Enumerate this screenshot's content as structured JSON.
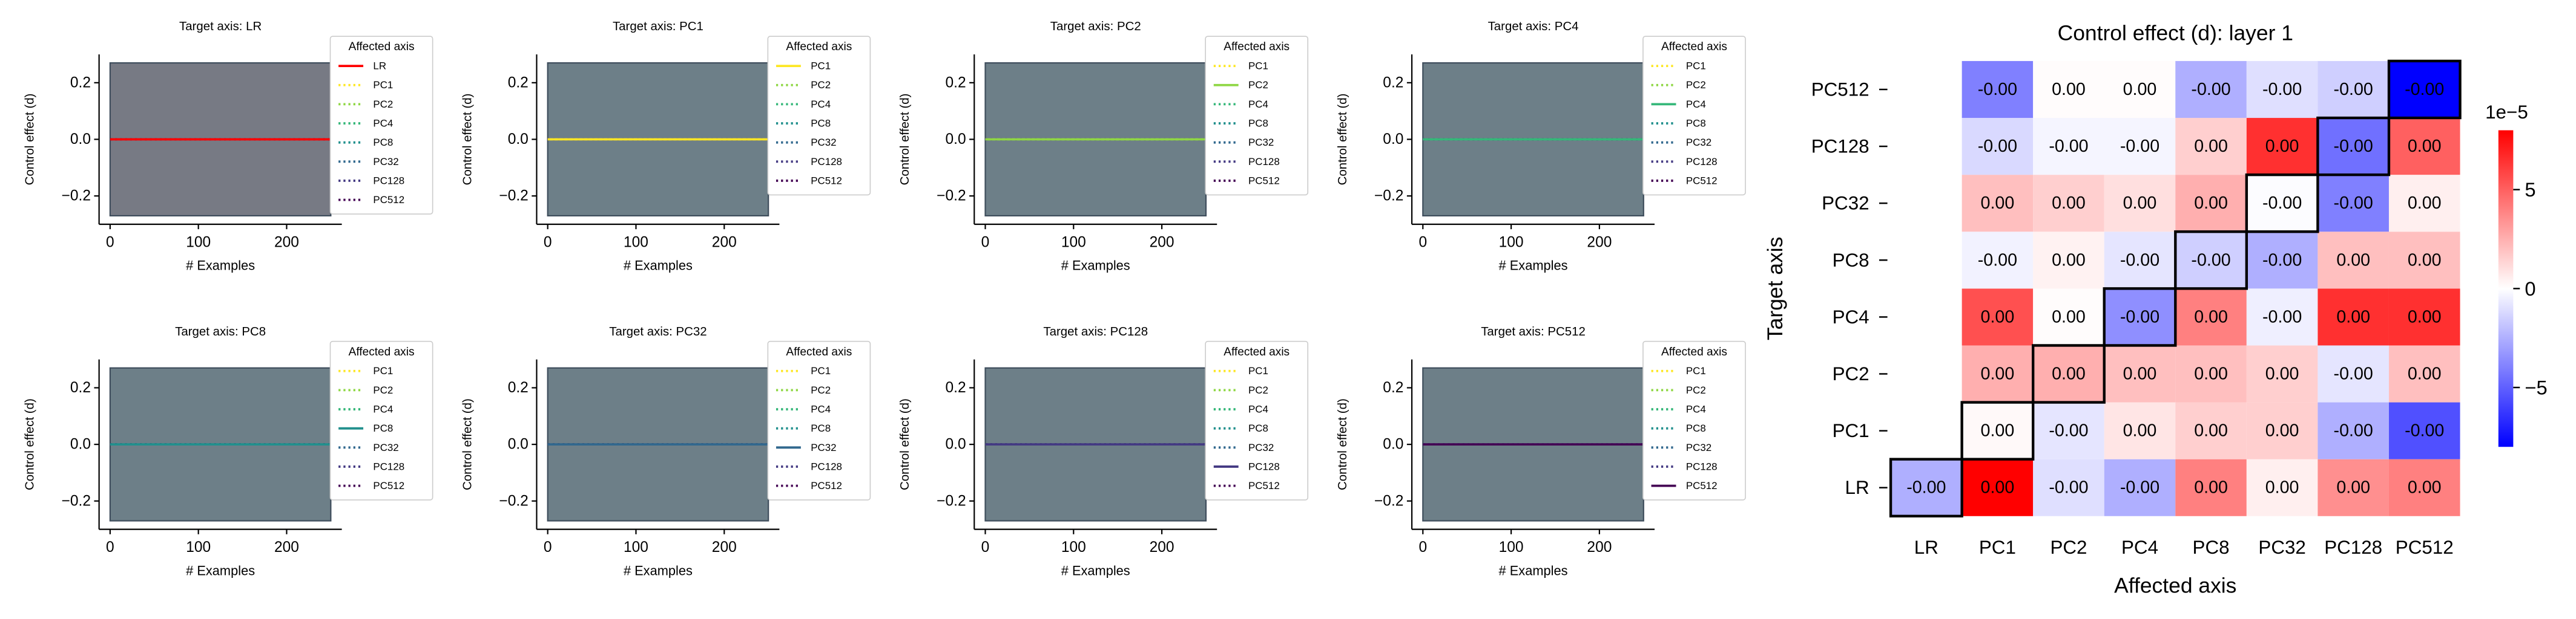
{
  "chart_data": [
    {
      "type": "line",
      "title": "Target axis: LR",
      "xlabel": "# Examples",
      "ylabel": "Control effect (d)",
      "legend_title": "Affected axis",
      "xlim": [
        -12.5,
        262.5
      ],
      "xticks": [
        0,
        100,
        200
      ],
      "ylim": [
        -0.3,
        0.3
      ],
      "yticks": [
        {
          "value": -0.2,
          "label": "−0.2"
        },
        {
          "value": 0,
          "label": "0.0"
        },
        0.2
      ],
      "shade": {
        "x": [
          0,
          250
        ],
        "y": [
          -0.27,
          0.27
        ],
        "color": "#777a84"
      },
      "x": [
        0,
        250
      ],
      "series": [
        {
          "name": "LR",
          "color": "#ff0000",
          "style": "solid",
          "values": [
            0,
            0
          ]
        },
        {
          "name": "PC1",
          "color": "#fde725",
          "style": "dotted",
          "values": [
            0,
            0
          ]
        },
        {
          "name": "PC2",
          "color": "#8fd744",
          "style": "dotted",
          "values": [
            0,
            0
          ]
        },
        {
          "name": "PC4",
          "color": "#35b779",
          "style": "dotted",
          "values": [
            0,
            0
          ]
        },
        {
          "name": "PC8",
          "color": "#21908d",
          "style": "dotted",
          "values": [
            0,
            0
          ]
        },
        {
          "name": "PC32",
          "color": "#31688e",
          "style": "dotted",
          "values": [
            0,
            0
          ]
        },
        {
          "name": "PC128",
          "color": "#443a83",
          "style": "dotted",
          "values": [
            0,
            0
          ]
        },
        {
          "name": "PC512",
          "color": "#440154",
          "style": "dotted",
          "values": [
            0,
            0
          ]
        }
      ]
    },
    {
      "type": "line",
      "title": "Target axis: PC1",
      "xlabel": "# Examples",
      "ylabel": "Control effect (d)",
      "legend_title": "Affected axis",
      "xlim": [
        -12.5,
        262.5
      ],
      "xticks": [
        0,
        100,
        200
      ],
      "ylim": [
        -0.3,
        0.3
      ],
      "yticks": [
        {
          "value": -0.2,
          "label": "−0.2"
        },
        {
          "value": 0,
          "label": "0.0"
        },
        0.2
      ],
      "shade": {
        "x": [
          0,
          250
        ],
        "y": [
          -0.27,
          0.27
        ],
        "color": "#6d7f88"
      },
      "x": [
        0,
        250
      ],
      "series": [
        {
          "name": "PC1",
          "color": "#fde725",
          "style": "solid",
          "values": [
            0,
            0
          ]
        },
        {
          "name": "PC2",
          "color": "#8fd744",
          "style": "dotted",
          "values": [
            0,
            0
          ]
        },
        {
          "name": "PC4",
          "color": "#35b779",
          "style": "dotted",
          "values": [
            0,
            0
          ]
        },
        {
          "name": "PC8",
          "color": "#21908d",
          "style": "dotted",
          "values": [
            0,
            0
          ]
        },
        {
          "name": "PC32",
          "color": "#31688e",
          "style": "dotted",
          "values": [
            0,
            0
          ]
        },
        {
          "name": "PC128",
          "color": "#443a83",
          "style": "dotted",
          "values": [
            0,
            0
          ]
        },
        {
          "name": "PC512",
          "color": "#440154",
          "style": "dotted",
          "values": [
            0,
            0
          ]
        }
      ]
    },
    {
      "type": "line",
      "title": "Target axis: PC2",
      "xlabel": "# Examples",
      "ylabel": "Control effect (d)",
      "legend_title": "Affected axis",
      "xlim": [
        -12.5,
        262.5
      ],
      "xticks": [
        0,
        100,
        200
      ],
      "ylim": [
        -0.3,
        0.3
      ],
      "yticks": [
        {
          "value": -0.2,
          "label": "−0.2"
        },
        {
          "value": 0,
          "label": "0.0"
        },
        0.2
      ],
      "shade": {
        "x": [
          0,
          250
        ],
        "y": [
          -0.27,
          0.27
        ],
        "color": "#6d7f88"
      },
      "x": [
        0,
        250
      ],
      "series": [
        {
          "name": "PC1",
          "color": "#fde725",
          "style": "dotted",
          "values": [
            0,
            0
          ]
        },
        {
          "name": "PC2",
          "color": "#8fd744",
          "style": "solid",
          "values": [
            0,
            0
          ]
        },
        {
          "name": "PC4",
          "color": "#35b779",
          "style": "dotted",
          "values": [
            0,
            0
          ]
        },
        {
          "name": "PC8",
          "color": "#21908d",
          "style": "dotted",
          "values": [
            0,
            0
          ]
        },
        {
          "name": "PC32",
          "color": "#31688e",
          "style": "dotted",
          "values": [
            0,
            0
          ]
        },
        {
          "name": "PC128",
          "color": "#443a83",
          "style": "dotted",
          "values": [
            0,
            0
          ]
        },
        {
          "name": "PC512",
          "color": "#440154",
          "style": "dotted",
          "values": [
            0,
            0
          ]
        }
      ]
    },
    {
      "type": "line",
      "title": "Target axis: PC4",
      "xlabel": "# Examples",
      "ylabel": "Control effect (d)",
      "legend_title": "Affected axis",
      "xlim": [
        -12.5,
        262.5
      ],
      "xticks": [
        0,
        100,
        200
      ],
      "ylim": [
        -0.3,
        0.3
      ],
      "yticks": [
        {
          "value": -0.2,
          "label": "−0.2"
        },
        {
          "value": 0,
          "label": "0.0"
        },
        0.2
      ],
      "shade": {
        "x": [
          0,
          250
        ],
        "y": [
          -0.27,
          0.27
        ],
        "color": "#6d7f88"
      },
      "x": [
        0,
        250
      ],
      "series": [
        {
          "name": "PC1",
          "color": "#fde725",
          "style": "dotted",
          "values": [
            0,
            0
          ]
        },
        {
          "name": "PC2",
          "color": "#8fd744",
          "style": "dotted",
          "values": [
            0,
            0
          ]
        },
        {
          "name": "PC4",
          "color": "#35b779",
          "style": "solid",
          "values": [
            0,
            0
          ]
        },
        {
          "name": "PC8",
          "color": "#21908d",
          "style": "dotted",
          "values": [
            0,
            0
          ]
        },
        {
          "name": "PC32",
          "color": "#31688e",
          "style": "dotted",
          "values": [
            0,
            0
          ]
        },
        {
          "name": "PC128",
          "color": "#443a83",
          "style": "dotted",
          "values": [
            0,
            0
          ]
        },
        {
          "name": "PC512",
          "color": "#440154",
          "style": "dotted",
          "values": [
            0,
            0
          ]
        }
      ]
    },
    {
      "type": "line",
      "title": "Target axis: PC8",
      "xlabel": "# Examples",
      "ylabel": "Control effect (d)",
      "legend_title": "Affected axis",
      "xlim": [
        -12.5,
        262.5
      ],
      "xticks": [
        0,
        100,
        200
      ],
      "ylim": [
        -0.3,
        0.3
      ],
      "yticks": [
        {
          "value": -0.2,
          "label": "−0.2"
        },
        {
          "value": 0,
          "label": "0.0"
        },
        0.2
      ],
      "shade": {
        "x": [
          0,
          250
        ],
        "y": [
          -0.27,
          0.27
        ],
        "color": "#6d7f88"
      },
      "x": [
        0,
        250
      ],
      "series": [
        {
          "name": "PC1",
          "color": "#fde725",
          "style": "dotted",
          "values": [
            0,
            0
          ]
        },
        {
          "name": "PC2",
          "color": "#8fd744",
          "style": "dotted",
          "values": [
            0,
            0
          ]
        },
        {
          "name": "PC4",
          "color": "#35b779",
          "style": "dotted",
          "values": [
            0,
            0
          ]
        },
        {
          "name": "PC8",
          "color": "#21908d",
          "style": "solid",
          "values": [
            0,
            0
          ]
        },
        {
          "name": "PC32",
          "color": "#31688e",
          "style": "dotted",
          "values": [
            0,
            0
          ]
        },
        {
          "name": "PC128",
          "color": "#443a83",
          "style": "dotted",
          "values": [
            0,
            0
          ]
        },
        {
          "name": "PC512",
          "color": "#440154",
          "style": "dotted",
          "values": [
            0,
            0
          ]
        }
      ]
    },
    {
      "type": "line",
      "title": "Target axis: PC32",
      "xlabel": "# Examples",
      "ylabel": "Control effect (d)",
      "legend_title": "Affected axis",
      "xlim": [
        -12.5,
        262.5
      ],
      "xticks": [
        0,
        100,
        200
      ],
      "ylim": [
        -0.3,
        0.3
      ],
      "yticks": [
        {
          "value": -0.2,
          "label": "−0.2"
        },
        {
          "value": 0,
          "label": "0.0"
        },
        0.2
      ],
      "shade": {
        "x": [
          0,
          250
        ],
        "y": [
          -0.27,
          0.27
        ],
        "color": "#6d7f88"
      },
      "x": [
        0,
        250
      ],
      "series": [
        {
          "name": "PC1",
          "color": "#fde725",
          "style": "dotted",
          "values": [
            0,
            0
          ]
        },
        {
          "name": "PC2",
          "color": "#8fd744",
          "style": "dotted",
          "values": [
            0,
            0
          ]
        },
        {
          "name": "PC4",
          "color": "#35b779",
          "style": "dotted",
          "values": [
            0,
            0
          ]
        },
        {
          "name": "PC8",
          "color": "#21908d",
          "style": "dotted",
          "values": [
            0,
            0
          ]
        },
        {
          "name": "PC32",
          "color": "#31688e",
          "style": "solid",
          "values": [
            0,
            0
          ]
        },
        {
          "name": "PC128",
          "color": "#443a83",
          "style": "dotted",
          "values": [
            0,
            0
          ]
        },
        {
          "name": "PC512",
          "color": "#440154",
          "style": "dotted",
          "values": [
            0,
            0
          ]
        }
      ]
    },
    {
      "type": "line",
      "title": "Target axis: PC128",
      "xlabel": "# Examples",
      "ylabel": "Control effect (d)",
      "legend_title": "Affected axis",
      "xlim": [
        -12.5,
        262.5
      ],
      "xticks": [
        0,
        100,
        200
      ],
      "ylim": [
        -0.3,
        0.3
      ],
      "yticks": [
        {
          "value": -0.2,
          "label": "−0.2"
        },
        {
          "value": 0,
          "label": "0.0"
        },
        0.2
      ],
      "shade": {
        "x": [
          0,
          250
        ],
        "y": [
          -0.27,
          0.27
        ],
        "color": "#6d7f88"
      },
      "x": [
        0,
        250
      ],
      "series": [
        {
          "name": "PC1",
          "color": "#fde725",
          "style": "dotted",
          "values": [
            0,
            0
          ]
        },
        {
          "name": "PC2",
          "color": "#8fd744",
          "style": "dotted",
          "values": [
            0,
            0
          ]
        },
        {
          "name": "PC4",
          "color": "#35b779",
          "style": "dotted",
          "values": [
            0,
            0
          ]
        },
        {
          "name": "PC8",
          "color": "#21908d",
          "style": "dotted",
          "values": [
            0,
            0
          ]
        },
        {
          "name": "PC32",
          "color": "#31688e",
          "style": "dotted",
          "values": [
            0,
            0
          ]
        },
        {
          "name": "PC128",
          "color": "#443a83",
          "style": "solid",
          "values": [
            0,
            0
          ]
        },
        {
          "name": "PC512",
          "color": "#440154",
          "style": "dotted",
          "values": [
            0,
            0
          ]
        }
      ]
    },
    {
      "type": "line",
      "title": "Target axis: PC512",
      "xlabel": "# Examples",
      "ylabel": "Control effect (d)",
      "legend_title": "Affected axis",
      "xlim": [
        -12.5,
        262.5
      ],
      "xticks": [
        0,
        100,
        200
      ],
      "ylim": [
        -0.3,
        0.3
      ],
      "yticks": [
        {
          "value": -0.2,
          "label": "−0.2"
        },
        {
          "value": 0,
          "label": "0.0"
        },
        0.2
      ],
      "shade": {
        "x": [
          0,
          250
        ],
        "y": [
          -0.27,
          0.27
        ],
        "color": "#6d7f88"
      },
      "x": [
        0,
        250
      ],
      "series": [
        {
          "name": "PC1",
          "color": "#fde725",
          "style": "dotted",
          "values": [
            0,
            0
          ]
        },
        {
          "name": "PC2",
          "color": "#8fd744",
          "style": "dotted",
          "values": [
            0,
            0
          ]
        },
        {
          "name": "PC4",
          "color": "#35b779",
          "style": "dotted",
          "values": [
            0,
            0
          ]
        },
        {
          "name": "PC8",
          "color": "#21908d",
          "style": "dotted",
          "values": [
            0,
            0
          ]
        },
        {
          "name": "PC32",
          "color": "#31688e",
          "style": "dotted",
          "values": [
            0,
            0
          ]
        },
        {
          "name": "PC128",
          "color": "#443a83",
          "style": "dotted",
          "values": [
            0,
            0
          ]
        },
        {
          "name": "PC512",
          "color": "#440154",
          "style": "solid",
          "values": [
            0,
            0
          ]
        }
      ]
    },
    {
      "type": "heatmap",
      "title": "Control effect (d): layer 1",
      "xlabel": "Affected axis",
      "ylabel": "Target axis",
      "cmap": "bwr",
      "categories": [
        "LR",
        "PC1",
        "PC2",
        "PC4",
        "PC8",
        "PC32",
        "PC128",
        "PC512"
      ],
      "y_categories": [
        "LR",
        "PC1",
        "PC2",
        "PC4",
        "PC8",
        "PC32",
        "PC128",
        "PC512"
      ],
      "values": [
        [
          -2.5e-05,
          8e-05,
          -1e-05,
          -2.5e-05,
          4e-05,
          5e-06,
          3.5e-05,
          4e-05
        ],
        [
          null,
          2e-06,
          -8e-06,
          8e-06,
          1.5e-05,
          1.5e-05,
          -2.5e-05,
          -5.5e-05
        ],
        [
          null,
          2.5e-05,
          2.5e-05,
          2e-05,
          2e-05,
          1.5e-05,
          -8e-06,
          2e-05
        ],
        [
          null,
          5.5e-05,
          1e-06,
          -3.5e-05,
          4e-05,
          -5e-06,
          6.5e-05,
          6.5e-05
        ],
        [
          null,
          -4e-06,
          4e-06,
          -8e-06,
          -1.5e-05,
          -2.5e-05,
          2e-05,
          2e-05
        ],
        [
          null,
          2e-05,
          1.5e-05,
          1e-05,
          2.5e-05,
          -1e-06,
          -4e-05,
          5e-06
        ],
        [
          null,
          -1.2e-05,
          -3e-06,
          -3e-06,
          1.5e-05,
          6.5e-05,
          -4.5e-05,
          5e-05
        ],
        [
          null,
          -4e-05,
          1e-06,
          1e-06,
          -2.5e-05,
          -1e-05,
          -1.5e-05,
          -8e-05
        ]
      ],
      "value_labels": [
        [
          "-0.00",
          "0.00",
          "-0.00",
          "-0.00",
          "0.00",
          "0.00",
          "0.00",
          "0.00"
        ],
        [
          null,
          "0.00",
          "-0.00",
          "0.00",
          "0.00",
          "0.00",
          "-0.00",
          "-0.00"
        ],
        [
          null,
          "0.00",
          "0.00",
          "0.00",
          "0.00",
          "0.00",
          "-0.00",
          "0.00"
        ],
        [
          null,
          "0.00",
          "0.00",
          "-0.00",
          "0.00",
          "-0.00",
          "0.00",
          "0.00"
        ],
        [
          null,
          "-0.00",
          "0.00",
          "-0.00",
          "-0.00",
          "-0.00",
          "0.00",
          "0.00"
        ],
        [
          null,
          "0.00",
          "0.00",
          "0.00",
          "0.00",
          "-0.00",
          "-0.00",
          "0.00"
        ],
        [
          null,
          "-0.00",
          "-0.00",
          "-0.00",
          "0.00",
          "0.00",
          "-0.00",
          "0.00"
        ],
        [
          null,
          "-0.00",
          "0.00",
          "0.00",
          "-0.00",
          "-0.00",
          "-0.00",
          "-0.00"
        ]
      ],
      "clim": [
        -8e-05,
        8e-05
      ],
      "cbar_ticks": [
        {
          "value": 5e-05,
          "label": "5"
        },
        0,
        {
          "value": -5e-05,
          "label": "−5"
        }
      ],
      "cbar_offset": "1e−5"
    }
  ]
}
